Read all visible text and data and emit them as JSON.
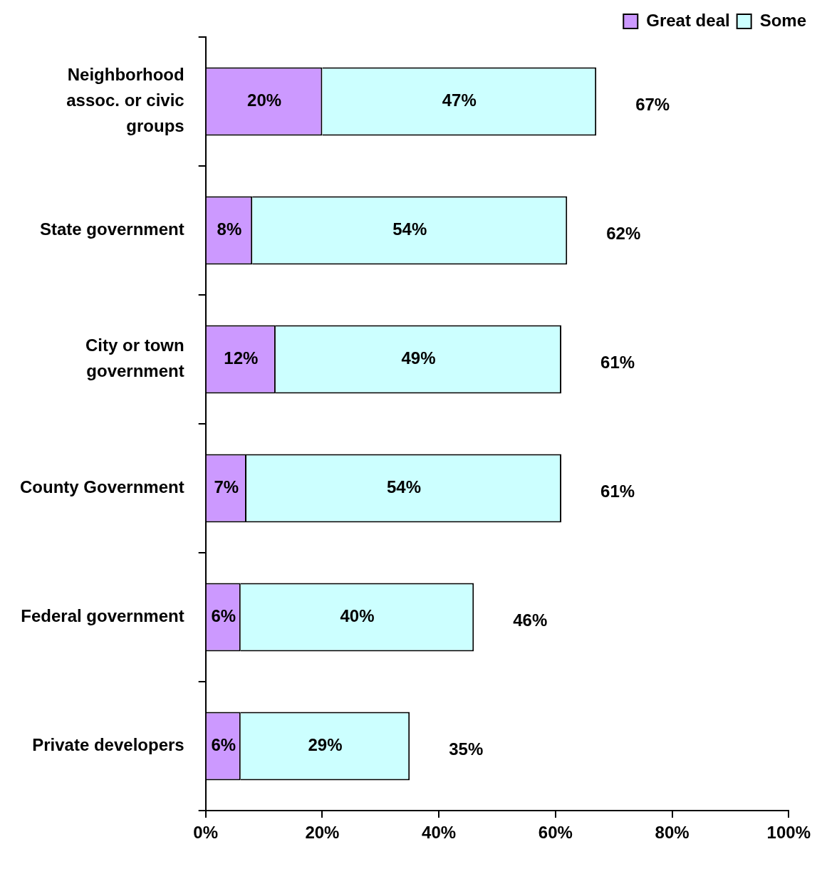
{
  "chart_data": {
    "type": "bar",
    "orientation": "horizontal",
    "stacked": true,
    "categories": [
      "Neighborhood assoc. or civic groups",
      "State government",
      "City or town government",
      "County Government",
      "Federal government",
      "Private developers"
    ],
    "series": [
      {
        "name": "Great deal",
        "color": "#cc99ff",
        "values": [
          20,
          8,
          12,
          7,
          6,
          6
        ],
        "value_labels": [
          "20%",
          "8%",
          "12%",
          "7%",
          "6%",
          "6%"
        ]
      },
      {
        "name": "Some",
        "color": "#ccffff",
        "values": [
          47,
          54,
          49,
          54,
          40,
          29
        ],
        "value_labels": [
          "47%",
          "54%",
          "49%",
          "54%",
          "40%",
          "29%"
        ]
      }
    ],
    "totals": [
      "67%",
      "62%",
      "61%",
      "61%",
      "46%",
      "35%"
    ],
    "xlim": [
      0,
      100
    ],
    "xticks": [
      {
        "value": 0,
        "label": "0%"
      },
      {
        "value": 20,
        "label": "20%"
      },
      {
        "value": 40,
        "label": "40%"
      },
      {
        "value": 60,
        "label": "60%"
      },
      {
        "value": 80,
        "label": "80%"
      },
      {
        "value": 100,
        "label": "100%"
      }
    ],
    "grid": false,
    "legend": "top right"
  }
}
